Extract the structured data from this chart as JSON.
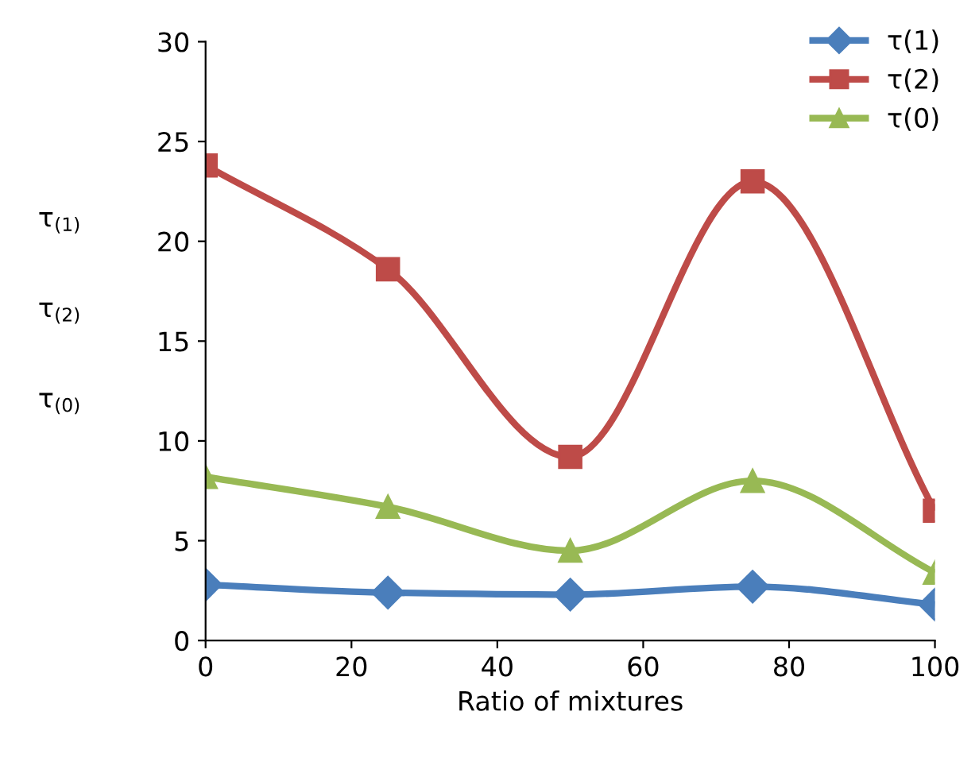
{
  "chart_data": {
    "type": "line",
    "xlabel": "Ratio of mixtures",
    "ylabel": "τ$_{(1)}$\n\n\nτ$_{(2)}$\n\n\nτ$_{(0)}$",
    "x": [
      0,
      25,
      50,
      75,
      100
    ],
    "series": [
      {
        "name": "τ(1)",
        "color": "#4a7ebb",
        "marker": "diamond",
        "values": [
          2.8,
          2.4,
          2.3,
          2.7,
          1.8
        ]
      },
      {
        "name": "τ(2)",
        "color": "#be4b48",
        "marker": "square",
        "values": [
          23.8,
          18.6,
          9.2,
          23.0,
          6.5
        ]
      },
      {
        "name": "τ(0)",
        "color": "#98b954",
        "marker": "triangle",
        "values": [
          8.2,
          6.7,
          4.5,
          8.0,
          3.4
        ]
      }
    ],
    "xlim": [
      0,
      100
    ],
    "xticks": [
      0,
      20,
      40,
      60,
      80,
      100
    ],
    "ylim": [
      0,
      30
    ],
    "yticks": [
      0,
      5,
      10,
      15,
      20,
      25,
      30
    ],
    "grid": false,
    "legend": "top right",
    "line_style": "solid"
  }
}
